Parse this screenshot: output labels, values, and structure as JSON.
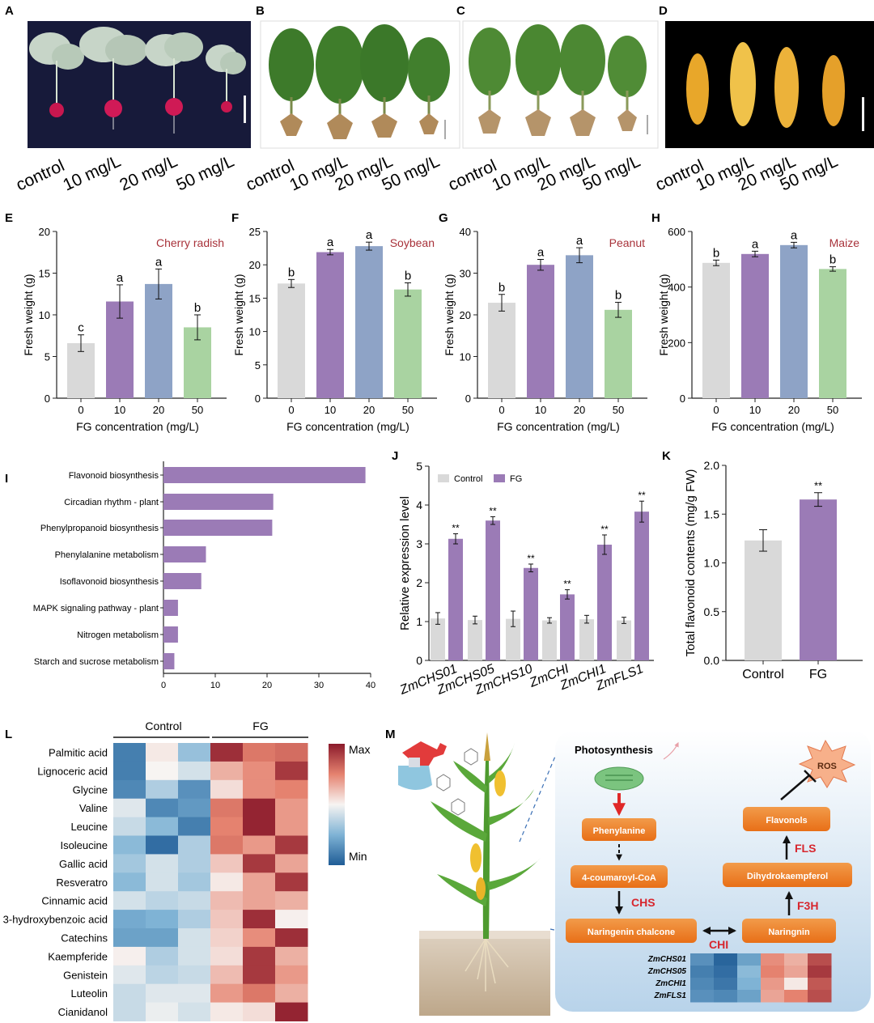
{
  "panels": {
    "A": {
      "letter": "A",
      "labels": [
        "control",
        "10 mg/L",
        "20 mg/L",
        "50 mg/L"
      ]
    },
    "B": {
      "letter": "B",
      "labels": [
        "control",
        "10 mg/L",
        "20 mg/L",
        "50 mg/L"
      ]
    },
    "C": {
      "letter": "C",
      "labels": [
        "control",
        "10 mg/L",
        "20 mg/L",
        "50 mg/L"
      ]
    },
    "D": {
      "letter": "D",
      "labels": [
        "control",
        "10 mg/L",
        "20 mg/L",
        "50 mg/L"
      ]
    }
  },
  "colors": {
    "control": "#d9d9d9",
    "c10": "#9b7bb6",
    "c20": "#8ea3c6",
    "c50": "#a9d3a1",
    "fg": "#9b7bb6",
    "axis": "#222222",
    "crop": "#a8323a",
    "red": "#d7262e"
  },
  "chart_data": [
    {
      "id": "E",
      "letter": "E",
      "type": "bar",
      "crop": "Cherry radish",
      "categories": [
        "0",
        "10",
        "20",
        "50"
      ],
      "values": [
        6.6,
        11.6,
        13.7,
        8.5
      ],
      "errors": [
        1.0,
        2.0,
        1.8,
        1.5
      ],
      "letters": [
        "c",
        "a",
        "a",
        "b"
      ],
      "ylim": [
        0,
        20
      ],
      "yticks": [
        0,
        5,
        10,
        15,
        20
      ],
      "ylabel": "Fresh weight (g)",
      "xlabel": "FG concentration (mg/L)"
    },
    {
      "id": "F",
      "letter": "F",
      "type": "bar",
      "crop": "Soybean",
      "categories": [
        "0",
        "10",
        "20",
        "50"
      ],
      "values": [
        17.2,
        21.9,
        22.8,
        16.3
      ],
      "errors": [
        0.6,
        0.4,
        0.6,
        1.0
      ],
      "letters": [
        "b",
        "a",
        "a",
        "b"
      ],
      "ylim": [
        0,
        25
      ],
      "yticks": [
        0,
        5,
        10,
        15,
        20,
        25
      ],
      "ylabel": "Fresh weight (g)",
      "xlabel": "FG concentration (mg/L)"
    },
    {
      "id": "G",
      "letter": "G",
      "type": "bar",
      "crop": "Peanut",
      "categories": [
        "0",
        "10",
        "20",
        "50"
      ],
      "values": [
        22.9,
        32.0,
        34.3,
        21.2
      ],
      "errors": [
        2.0,
        1.3,
        1.8,
        1.8
      ],
      "letters": [
        "b",
        "a",
        "a",
        "b"
      ],
      "ylim": [
        0,
        40
      ],
      "yticks": [
        0,
        10,
        20,
        30,
        40
      ],
      "ylabel": "Fresh weight (g)",
      "xlabel": "FG concentration (mg/L)"
    },
    {
      "id": "H",
      "letter": "H",
      "type": "bar",
      "crop": "Maize",
      "categories": [
        "0",
        "10",
        "20",
        "50"
      ],
      "values": [
        487,
        519,
        551,
        465
      ],
      "errors": [
        10,
        10,
        10,
        8
      ],
      "letters": [
        "b",
        "a",
        "a",
        "b"
      ],
      "ylim": [
        0,
        600
      ],
      "yticks": [
        0,
        200,
        400,
        600
      ],
      "ylabel": "Fresh weight (g)",
      "xlabel": "FG concentration (mg/L)"
    },
    {
      "id": "I",
      "letter": "I",
      "type": "bar",
      "orientation": "horizontal",
      "categories": [
        "Flavonoid biosynthesis",
        "Circadian rhythm - plant",
        "Phenylpropanoid biosynthesis",
        "Phenylalanine metabolism",
        "Isoflavonoid biosynthesis",
        "MAPK signaling pathway - plant",
        "Nitrogen metabolism",
        "Starch and sucrose metabolism"
      ],
      "values": [
        39,
        21.2,
        21.0,
        8.2,
        7.3,
        2.8,
        2.8,
        2.1
      ],
      "xlim": [
        0,
        40
      ],
      "xticks": [
        0,
        10,
        20,
        30,
        40
      ]
    },
    {
      "id": "J",
      "letter": "J",
      "type": "bar",
      "categories": [
        "ZmCHS01",
        "ZmCHS05",
        "ZmCHS10",
        "ZmCHI",
        "ZmCHI1",
        "ZmFLS1"
      ],
      "series": [
        {
          "name": "Control",
          "values": [
            1.08,
            1.04,
            1.07,
            1.03,
            1.06,
            1.03
          ],
          "errors": [
            0.15,
            0.1,
            0.2,
            0.07,
            0.1,
            0.08
          ]
        },
        {
          "name": "FG",
          "values": [
            3.13,
            3.6,
            2.38,
            1.7,
            2.98,
            3.83
          ],
          "errors": [
            0.13,
            0.1,
            0.1,
            0.12,
            0.25,
            0.27
          ]
        }
      ],
      "sig": [
        "**",
        "**",
        "**",
        "**",
        "**",
        "**"
      ],
      "ylim": [
        0,
        5
      ],
      "yticks": [
        0,
        1,
        2,
        3,
        4,
        5
      ],
      "ylabel": "Relative expression level"
    },
    {
      "id": "K",
      "letter": "K",
      "type": "bar",
      "categories": [
        "Control",
        "FG"
      ],
      "values": [
        1.23,
        1.65
      ],
      "errors": [
        0.11,
        0.07
      ],
      "sig": [
        "",
        "**"
      ],
      "ylim": [
        0,
        2.0
      ],
      "yticks": [
        "0.0",
        "0.5",
        "1.0",
        "1.5",
        "2.0"
      ],
      "ylabel": "Total flavonoid contents (mg/g FW)"
    },
    {
      "id": "L",
      "letter": "L",
      "type": "heatmap",
      "groups": [
        "Control",
        "FG"
      ],
      "rows": [
        "Palmitic acid",
        "Lignoceric acid",
        "Glycine",
        "Valine",
        "Leucine",
        "Isoleucine",
        "Gallic acid",
        "Resveratro",
        "Cinnamic acid",
        "3-hydroxybenzoic acid",
        "Catechins",
        "Kaempferide",
        "Genistein",
        "Luteolin",
        "Cianidanol"
      ],
      "values": [
        [
          -0.8,
          0.05,
          -0.4,
          0.9,
          0.55,
          0.6
        ],
        [
          -0.8,
          0.0,
          -0.15,
          0.3,
          0.45,
          0.85
        ],
        [
          -0.75,
          -0.3,
          -0.7,
          0.1,
          0.45,
          0.5
        ],
        [
          -0.1,
          -0.75,
          -0.65,
          0.55,
          0.95,
          0.4
        ],
        [
          -0.2,
          -0.45,
          -0.8,
          0.5,
          0.95,
          0.4
        ],
        [
          -0.45,
          -0.9,
          -0.3,
          0.55,
          0.4,
          0.85
        ],
        [
          -0.35,
          -0.15,
          -0.3,
          0.2,
          0.85,
          0.35
        ],
        [
          -0.45,
          -0.15,
          -0.35,
          0.05,
          0.35,
          0.85
        ],
        [
          -0.15,
          -0.25,
          -0.2,
          0.25,
          0.35,
          0.3
        ],
        [
          -0.55,
          -0.5,
          -0.3,
          0.2,
          0.9,
          0.02
        ],
        [
          -0.6,
          -0.6,
          -0.15,
          0.15,
          0.45,
          0.9
        ],
        [
          0.02,
          -0.3,
          -0.15,
          0.1,
          0.85,
          0.3
        ],
        [
          -0.1,
          -0.25,
          -0.2,
          0.25,
          0.85,
          0.4
        ],
        [
          -0.2,
          -0.1,
          -0.1,
          0.4,
          0.55,
          0.3
        ],
        [
          -0.2,
          -0.05,
          -0.15,
          0.05,
          0.1,
          0.95
        ]
      ],
      "scale_labels": [
        "Max",
        "Min"
      ]
    }
  ],
  "panel_m": {
    "letter": "M",
    "photosynthesis": "Photosynthesis",
    "ros": "ROS",
    "boxes": {
      "phe": "Phenylanine",
      "cou": "4-coumaroyl-CoA",
      "narch": "Naringenin chalcone",
      "nar": "Naringnin",
      "dhk": "Dihydrokaempferol",
      "flav": "Flavonols"
    },
    "enzymes": {
      "chs": "CHS",
      "chi": "CHI",
      "f3h": "F3H",
      "fls": "FLS"
    },
    "genes": [
      "ZmCHS01",
      "ZmCHS05",
      "ZmCHI1",
      "ZmFLS1"
    ],
    "gene_heat": [
      [
        -0.7,
        -0.95,
        -0.6,
        0.45,
        0.3,
        0.75
      ],
      [
        -0.8,
        -0.9,
        -0.45,
        0.5,
        0.35,
        0.85
      ],
      [
        -0.75,
        -0.85,
        -0.5,
        0.4,
        0.05,
        0.7
      ],
      [
        -0.7,
        -0.75,
        -0.6,
        0.35,
        0.5,
        0.75
      ]
    ]
  }
}
